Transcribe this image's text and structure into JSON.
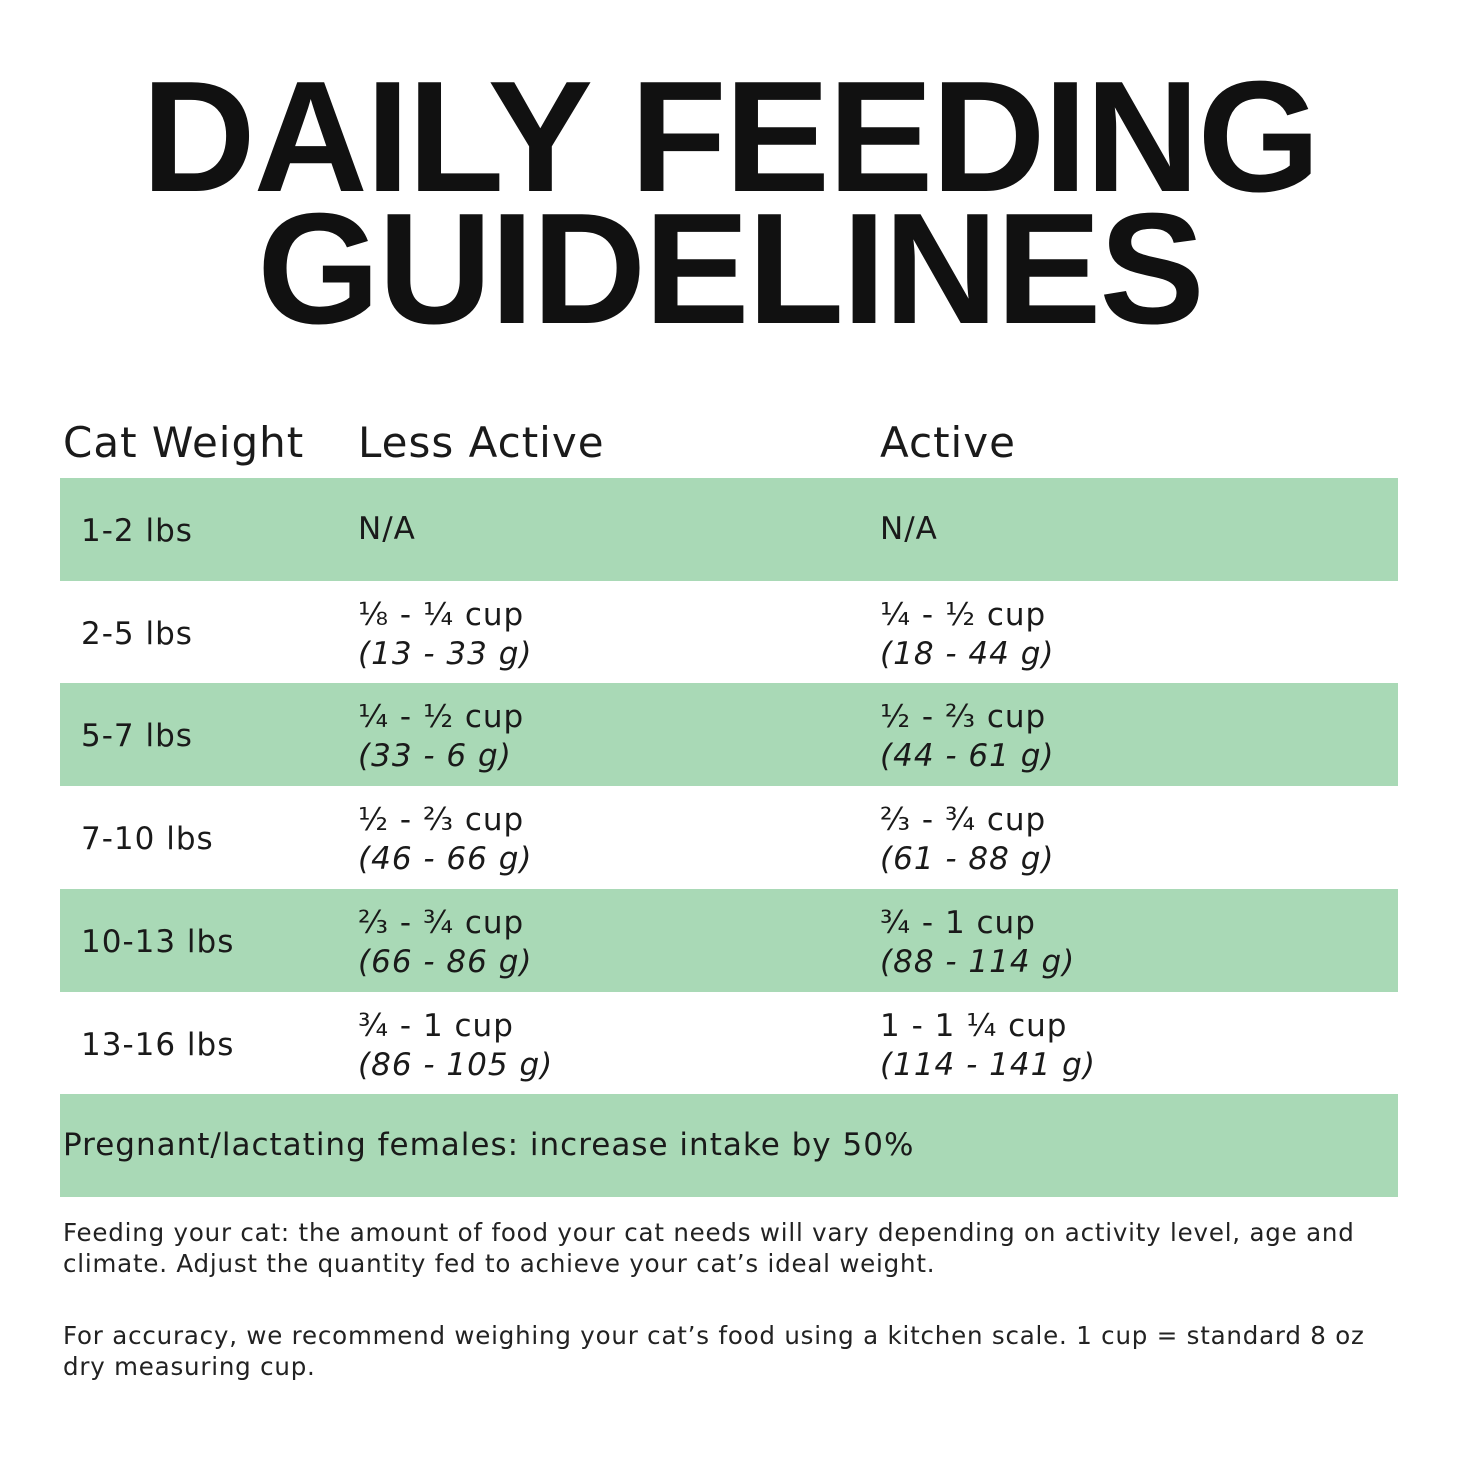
{
  "header": {
    "title_lines": [
      "DAILY FEEDING",
      "GUIDELINES"
    ]
  },
  "table": {
    "columns": [
      "Cat Weight",
      "Less Active",
      "Active"
    ],
    "rows": [
      {
        "weight": "1-2 lbs",
        "less_active": [
          "N/A"
        ],
        "active": [
          "N/A"
        ]
      },
      {
        "weight": "2-5 lbs",
        "less_active": [
          "⅛ - ¼ cup",
          "(13 - 33 g)"
        ],
        "active": [
          "¼ - ½ cup",
          "(18 - 44 g)"
        ]
      },
      {
        "weight": "5-7 lbs",
        "less_active": [
          "¼ - ½ cup",
          "(33 - 6 g)"
        ],
        "active": [
          "½ - ⅔ cup",
          "(44 - 61 g)"
        ]
      },
      {
        "weight": "7-10 lbs",
        "less_active": [
          "½ - ⅔ cup",
          "(46 - 66 g)"
        ],
        "active": [
          "⅔ - ¾ cup",
          "(61 - 88 g)"
        ]
      },
      {
        "weight": "10-13 lbs",
        "less_active": [
          "⅔ - ¾ cup",
          "(66 - 86 g)"
        ],
        "active": [
          "¾ - 1 cup",
          "(88 - 114 g)"
        ]
      },
      {
        "weight": "13-16 lbs",
        "less_active": [
          "¾ - 1 cup",
          "(86 - 105 g)"
        ],
        "active": [
          "1 - 1 ¼ cup",
          "(114 - 141 g)"
        ]
      }
    ],
    "note": "Pregnant/lactating females: increase intake by 50%"
  },
  "footnotes": [
    "Feeding your cat: the amount of food your cat needs will vary depending on activity level, age and climate. Adjust the quantity fed to achieve your cat’s ideal weight.",
    "For accuracy, we recommend weighing your cat’s food using a kitchen scale. 1 cup = standard 8 oz dry measuring cup."
  ]
}
